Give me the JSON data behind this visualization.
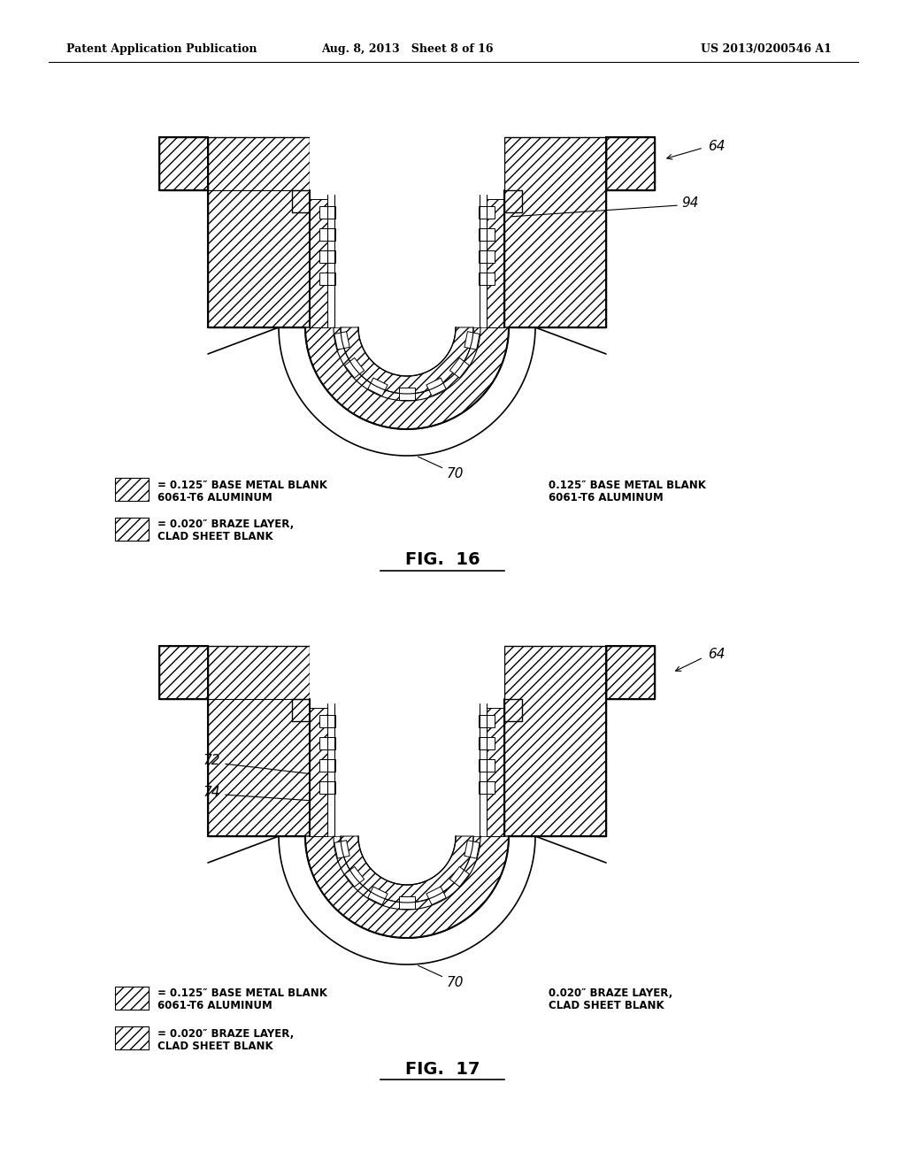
{
  "header_left": "Patent Application Publication",
  "header_mid": "Aug. 8, 2013   Sheet 8 of 16",
  "header_right": "US 2013/0200546 A1",
  "fig16_label": "FIG.  16",
  "fig17_label": "FIG.  17",
  "legend1a": "= 0.125″ BASE METAL BLANK",
  "legend1b": "6061-T6 ALUMINUM",
  "legend2a": "= 0.020″ BRAZE LAYER,",
  "legend2b": "CLAD SHEET BLANK",
  "right16a": "0.125″ BASE METAL BLANK",
  "right16b": "6061-T6 ALUMINUM",
  "right17a": "0.020″ BRAZE LAYER,",
  "right17b": "CLAD SHEET BLANK",
  "bg_color": "#ffffff",
  "black": "#000000"
}
